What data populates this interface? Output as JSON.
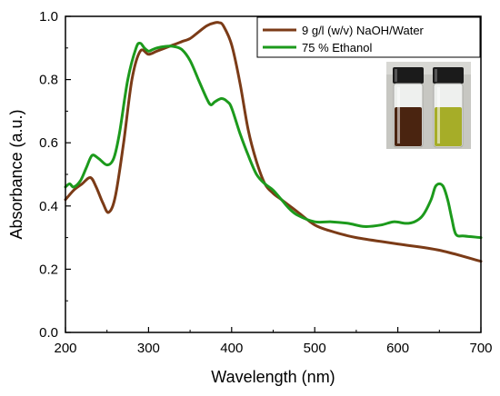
{
  "chart_data": {
    "type": "line",
    "title": "",
    "xlabel": "Wavelength (nm)",
    "ylabel": "Absorbance (a.u.)",
    "xlim": [
      200,
      700
    ],
    "ylim": [
      0.0,
      1.0
    ],
    "x_ticks": [
      "200",
      "300",
      "400",
      "500",
      "600",
      "700"
    ],
    "y_ticks": [
      "0.0",
      "0.2",
      "0.4",
      "0.6",
      "0.8",
      "1.0"
    ],
    "grid": false,
    "legend_position": "top-right",
    "inset": "photo of two sample vials (left: brown, right: yellow-green)",
    "series": [
      {
        "name": "9 g/l (w/v) NaOH/Water",
        "color": "#7b3b17",
        "x": [
          200,
          210,
          220,
          230,
          237,
          245,
          252,
          260,
          270,
          280,
          290,
          300,
          310,
          320,
          330,
          340,
          350,
          360,
          370,
          380,
          385,
          390,
          400,
          410,
          420,
          430,
          440,
          450,
          460,
          470,
          480,
          500,
          520,
          550,
          600,
          650,
          700
        ],
        "y": [
          0.42,
          0.45,
          0.47,
          0.49,
          0.46,
          0.41,
          0.38,
          0.43,
          0.6,
          0.8,
          0.89,
          0.88,
          0.89,
          0.9,
          0.91,
          0.92,
          0.93,
          0.95,
          0.97,
          0.98,
          0.98,
          0.97,
          0.91,
          0.79,
          0.64,
          0.54,
          0.47,
          0.44,
          0.42,
          0.4,
          0.38,
          0.34,
          0.32,
          0.3,
          0.28,
          0.26,
          0.225
        ]
      },
      {
        "name": "75 % Ethanol",
        "color": "#1c9a1c",
        "x": [
          200,
          205,
          210,
          218,
          225,
          232,
          240,
          250,
          258,
          265,
          275,
          285,
          290,
          295,
          300,
          305,
          310,
          320,
          330,
          340,
          350,
          360,
          370,
          375,
          380,
          388,
          395,
          400,
          410,
          420,
          430,
          440,
          450,
          460,
          470,
          480,
          500,
          520,
          540,
          560,
          580,
          595,
          610,
          620,
          630,
          640,
          645,
          650,
          655,
          660,
          665,
          670,
          680,
          700
        ],
        "y": [
          0.46,
          0.47,
          0.46,
          0.48,
          0.52,
          0.56,
          0.55,
          0.53,
          0.55,
          0.63,
          0.8,
          0.9,
          0.915,
          0.9,
          0.89,
          0.895,
          0.9,
          0.905,
          0.905,
          0.895,
          0.86,
          0.8,
          0.74,
          0.72,
          0.73,
          0.74,
          0.73,
          0.71,
          0.63,
          0.56,
          0.5,
          0.47,
          0.45,
          0.42,
          0.39,
          0.37,
          0.35,
          0.35,
          0.345,
          0.335,
          0.34,
          0.35,
          0.345,
          0.35,
          0.37,
          0.42,
          0.46,
          0.47,
          0.46,
          0.42,
          0.36,
          0.31,
          0.305,
          0.3
        ]
      }
    ]
  }
}
